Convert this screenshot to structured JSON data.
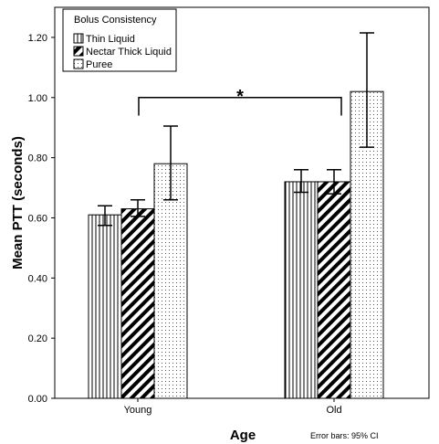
{
  "chart_data": {
    "type": "bar",
    "categories": [
      "Young",
      "Old"
    ],
    "series": [
      {
        "name": "Thin Liquid",
        "values": [
          0.61,
          0.72
        ],
        "ci_low": [
          0.575,
          0.685
        ],
        "ci_high": [
          0.64,
          0.76
        ],
        "pattern": "vertical-stripes"
      },
      {
        "name": "Nectar Thick Liquid",
        "values": [
          0.63,
          0.72
        ],
        "ci_low": [
          0.605,
          0.68
        ],
        "ci_high": [
          0.66,
          0.76
        ],
        "pattern": "diagonal-stripes"
      },
      {
        "name": "Puree",
        "values": [
          0.78,
          1.02
        ],
        "ci_low": [
          0.66,
          0.835
        ],
        "ci_high": [
          0.905,
          1.215
        ],
        "pattern": "dots"
      }
    ],
    "ylim": [
      0,
      1.3
    ],
    "yticks": [
      "0.00",
      "0.20",
      "0.40",
      "0.60",
      "0.80",
      "1.00",
      "1.20"
    ],
    "ytick_values": [
      0,
      0.2,
      0.4,
      0.6,
      0.8,
      1.0,
      1.2
    ],
    "xlabel": "Age",
    "ylabel": "Mean PTT (seconds)",
    "legend_title": "Bolus Consistency",
    "legend_placement": "top-left",
    "annotation": "*",
    "footnote": "Error bars: 95% CI",
    "grid": false
  }
}
